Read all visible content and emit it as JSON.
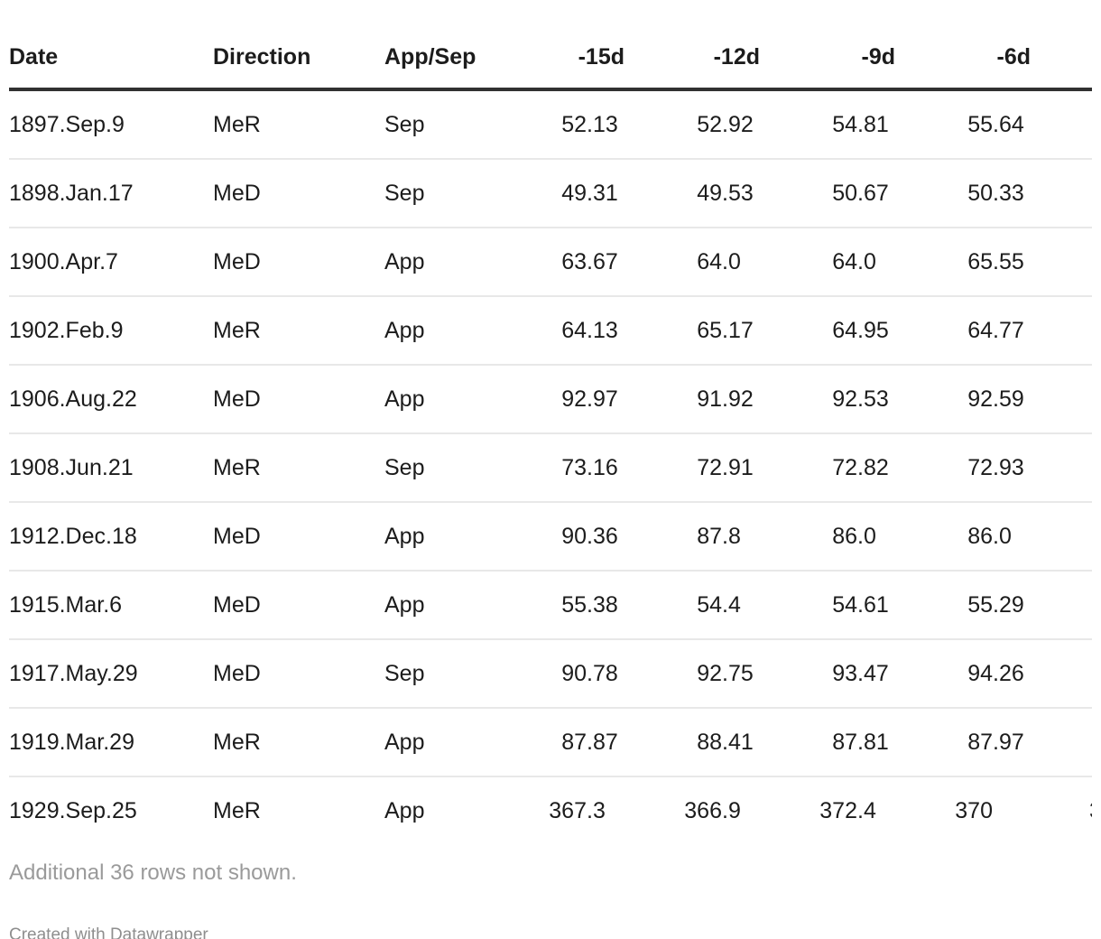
{
  "chart_data": {
    "type": "table",
    "columns": [
      "Date",
      "Direction",
      "App/Sep",
      "-15d",
      "-12d",
      "-9d",
      "-6d"
    ],
    "numeric_columns_start_index": 3,
    "rows": [
      [
        "1897.Sep.9",
        "MeR",
        "Sep",
        "52.13",
        "52.92",
        "54.81",
        "55.64"
      ],
      [
        "1898.Jan.17",
        "MeD",
        "Sep",
        "49.31",
        "49.53",
        "50.67",
        "50.33"
      ],
      [
        "1900.Apr.7",
        "MeD",
        "App",
        "63.67",
        "64.0",
        "64.0",
        "65.55"
      ],
      [
        "1902.Feb.9",
        "MeR",
        "App",
        "64.13",
        "65.17",
        "64.95",
        "64.77"
      ],
      [
        "1906.Aug.22",
        "MeD",
        "App",
        "92.97",
        "91.92",
        "92.53",
        "92.59"
      ],
      [
        "1908.Jun.21",
        "MeR",
        "Sep",
        "73.16",
        "72.91",
        "72.82",
        "72.93"
      ],
      [
        "1912.Dec.18",
        "MeD",
        "App",
        "90.36",
        "87.8",
        "86.0",
        "86.0"
      ],
      [
        "1915.Mar.6",
        "MeD",
        "App",
        "55.38",
        "54.4",
        "54.61",
        "55.29"
      ],
      [
        "1917.May.29",
        "MeD",
        "Sep",
        "90.78",
        "92.75",
        "93.47",
        "94.26"
      ],
      [
        "1919.Mar.29",
        "MeR",
        "App",
        "87.87",
        "88.41",
        "87.81",
        "87.97"
      ],
      [
        "1929.Sep.25",
        "MeR",
        "App",
        "367.3",
        "366.9",
        "372.4",
        "370"
      ]
    ],
    "clipped_next_column": {
      "last_row_visible_digit": "3"
    },
    "note": "Additional 36 rows not shown.",
    "attribution": "Created with Datawrapper",
    "layout": {
      "grid": "horizontal separators only",
      "number_alignment": "decimal",
      "header_alignment_numeric": "right"
    }
  },
  "colors": {
    "background": "#ffffff",
    "text": "#1c1c1c",
    "header_rule": "#313131",
    "row_separator": "#e8e8e8",
    "note_text": "#9a9a9a",
    "attribution_text": "#8e8e8e"
  }
}
